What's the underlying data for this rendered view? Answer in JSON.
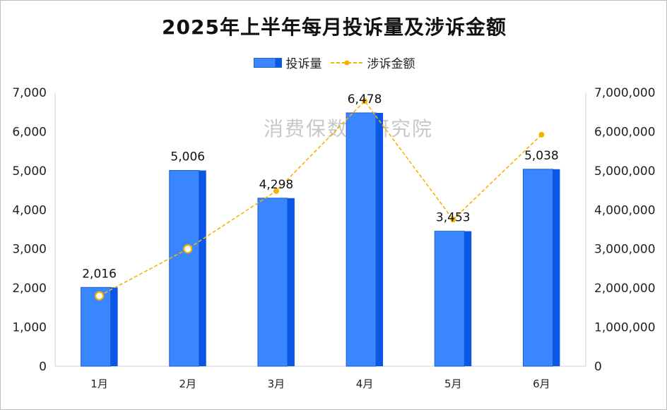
{
  "chart_data": {
    "type": "bar",
    "title": "2025年上半年每月投诉量及涉诉金额",
    "categories": [
      "1月",
      "2月",
      "3月",
      "4月",
      "5月",
      "6月"
    ],
    "series": [
      {
        "name": "投诉量",
        "type": "bar",
        "axis": "left",
        "color": "#3a86ff",
        "values": [
          2016,
          5006,
          4298,
          6478,
          3453,
          5038
        ],
        "data_labels": [
          "2,016",
          "5,006",
          "4,298",
          "6,478",
          "3,453",
          "5,038"
        ]
      },
      {
        "name": "涉诉金额",
        "type": "line",
        "axis": "right",
        "color": "#f5b300",
        "line_style": "dashed",
        "values": [
          1800000,
          3000000,
          4480000,
          6780000,
          3750000,
          5920000
        ]
      }
    ],
    "y_left": {
      "ylim": [
        0,
        7000
      ],
      "ticks": [
        "0",
        "1,000",
        "2,000",
        "3,000",
        "4,000",
        "5,000",
        "6,000",
        "7,000"
      ]
    },
    "y_right": {
      "ylim": [
        0,
        7000000
      ],
      "ticks": [
        "0",
        "1,000,000",
        "2,000,000",
        "3,000,000",
        "4,000,000",
        "5,000,000",
        "6,000,000",
        "7,000,000"
      ]
    },
    "legend_position": "top-center",
    "grid": false,
    "watermark": "消费保数据研究院"
  }
}
